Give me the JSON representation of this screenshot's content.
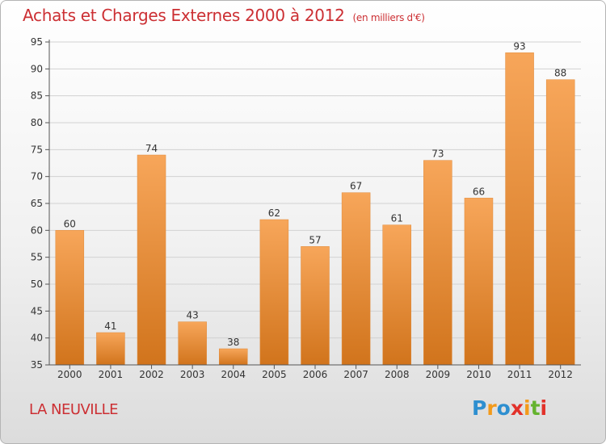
{
  "title": "Achats et Charges Externes 2000 à 2012",
  "unit_note": "(en milliers d'€)",
  "commune": "LA NEUVILLE",
  "logo": {
    "letters": [
      "P",
      "r",
      "o",
      "x",
      "i",
      "t",
      "i"
    ],
    "colors": [
      "#2e8fd0",
      "#f39a1a",
      "#2e8fd0",
      "#e2312a",
      "#f39a1a",
      "#64b32e",
      "#e2312a"
    ]
  },
  "colors": {
    "bar_top": "#f7a65a",
    "bar_bottom": "#d1741c",
    "title": "#cc2f33"
  },
  "chart_data": {
    "type": "bar",
    "categories": [
      "2000",
      "2001",
      "2002",
      "2003",
      "2004",
      "2005",
      "2006",
      "2007",
      "2008",
      "2009",
      "2010",
      "2011",
      "2012"
    ],
    "values": [
      60,
      41,
      74,
      43,
      38,
      62,
      57,
      67,
      61,
      73,
      66,
      93,
      88
    ],
    "ylim": [
      35,
      95
    ],
    "yticks": [
      35,
      40,
      45,
      50,
      55,
      60,
      65,
      70,
      75,
      80,
      85,
      90,
      95
    ],
    "grid": true
  }
}
